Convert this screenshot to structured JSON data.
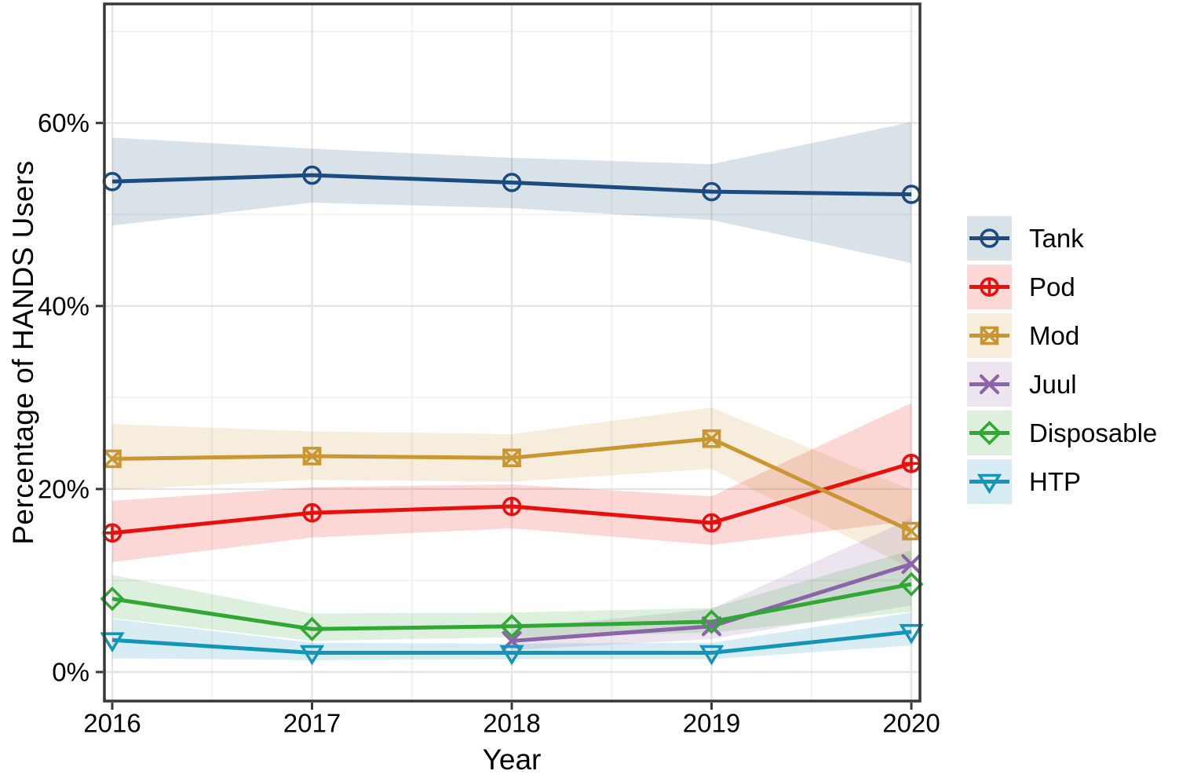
{
  "chart_data": {
    "type": "line",
    "title": "",
    "xlabel": "Year",
    "ylabel": "Percentage of HANDS Users",
    "x_tick_labels": [
      "2016",
      "2017",
      "2018",
      "2019",
      "2020"
    ],
    "x_tick_values": [
      2016,
      2017,
      2018,
      2019,
      2020
    ],
    "y_tick_labels": [
      "0%",
      "20%",
      "40%",
      "60%"
    ],
    "y_tick_values": [
      0,
      20,
      40,
      60
    ],
    "ylim": [
      -3,
      73
    ],
    "grid": {
      "major": true,
      "minor": true,
      "minor_y_values": [
        10,
        30,
        50,
        70
      ],
      "minor_x_values": [
        2016.5,
        2017.5,
        2018.5,
        2019.5
      ]
    },
    "legend_position": "right",
    "unit": "percent of HANDS users",
    "series": [
      {
        "name": "Tank",
        "color": "#1B4B7F",
        "marker": "circle",
        "x": [
          2016,
          2017,
          2018,
          2019,
          2020
        ],
        "values": [
          53.6,
          54.3,
          53.5,
          52.5,
          52.2
        ],
        "ci_lower": [
          48.8,
          51.3,
          50.7,
          49.4,
          44.7
        ],
        "ci_upper": [
          58.4,
          57.2,
          56.2,
          55.5,
          60.1
        ]
      },
      {
        "name": "Pod",
        "color": "#E8100D",
        "marker": "circle-plus",
        "x": [
          2016,
          2017,
          2018,
          2019,
          2020
        ],
        "values": [
          15.2,
          17.4,
          18.1,
          16.3,
          22.8
        ],
        "ci_lower": [
          12.0,
          14.7,
          15.7,
          13.9,
          16.5
        ],
        "ci_upper": [
          18.7,
          20.2,
          20.5,
          19.2,
          29.4
        ]
      },
      {
        "name": "Mod",
        "color": "#C89732",
        "marker": "square-x",
        "x": [
          2016,
          2017,
          2018,
          2019,
          2020
        ],
        "values": [
          23.3,
          23.6,
          23.4,
          25.5,
          15.4
        ],
        "ci_lower": [
          19.9,
          21.0,
          20.8,
          22.2,
          11.3
        ],
        "ci_upper": [
          27.1,
          26.3,
          26.0,
          28.9,
          19.9
        ]
      },
      {
        "name": "Juul",
        "color": "#8C64A8",
        "marker": "x-cross",
        "x": [
          2018,
          2019,
          2020
        ],
        "values": [
          3.4,
          5.0,
          11.8
        ],
        "ci_lower": [
          2.4,
          3.6,
          7.3
        ],
        "ci_upper": [
          4.7,
          6.9,
          16.8
        ]
      },
      {
        "name": "Disposable",
        "color": "#31A834",
        "marker": "diamond",
        "x": [
          2016,
          2017,
          2018,
          2019,
          2020
        ],
        "values": [
          8.0,
          4.7,
          5.0,
          5.5,
          9.6
        ],
        "ci_lower": [
          5.9,
          3.4,
          3.8,
          4.3,
          6.6
        ],
        "ci_upper": [
          10.6,
          6.4,
          6.5,
          7.0,
          13.3
        ]
      },
      {
        "name": "HTP",
        "color": "#1596B8",
        "marker": "triangle-down",
        "x": [
          2016,
          2017,
          2018,
          2019,
          2020
        ],
        "values": [
          3.5,
          2.1,
          2.1,
          2.1,
          4.4
        ],
        "ci_lower": [
          1.5,
          1.3,
          1.4,
          1.4,
          2.9
        ],
        "ci_upper": [
          5.8,
          3.2,
          3.1,
          3.2,
          6.5
        ]
      }
    ]
  }
}
